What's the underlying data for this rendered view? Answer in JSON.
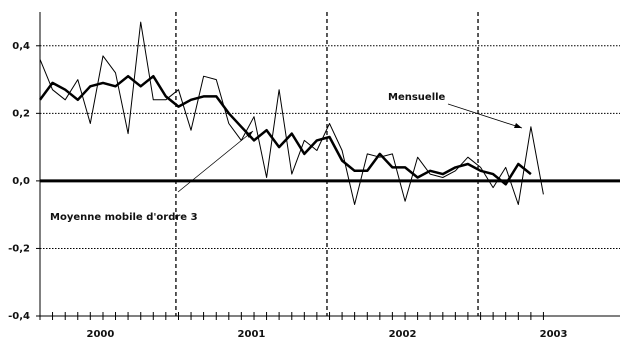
{
  "chart_data": {
    "type": "line",
    "x": [
      2000.1,
      2000.183,
      2000.267,
      2000.35,
      2000.433,
      2000.517,
      2000.6,
      2000.683,
      2000.767,
      2000.85,
      2000.933,
      2001.017,
      2001.1,
      2001.183,
      2001.267,
      2001.35,
      2001.433,
      2001.517,
      2001.6,
      2001.683,
      2001.767,
      2001.85,
      2001.933,
      2002.017,
      2002.1,
      2002.183,
      2002.267,
      2002.35,
      2002.433,
      2002.517,
      2002.6,
      2002.683,
      2002.767,
      2002.85,
      2002.933,
      2003.017,
      2003.1,
      2003.183,
      2003.267,
      2003.35,
      2003.433
    ],
    "series": [
      {
        "name": "Mensuelle",
        "color": "#000000",
        "width": 1,
        "values": [
          0.36,
          0.27,
          0.24,
          0.3,
          0.17,
          0.37,
          0.32,
          0.14,
          0.47,
          0.24,
          0.24,
          0.27,
          0.15,
          0.31,
          0.3,
          0.17,
          0.12,
          0.19,
          0.01,
          0.27,
          0.02,
          0.12,
          0.09,
          0.17,
          0.09,
          -0.07,
          0.08,
          0.07,
          0.08,
          -0.06,
          0.07,
          0.02,
          0.01,
          0.03,
          0.07,
          0.04,
          -0.02,
          0.04,
          -0.07,
          0.16,
          -0.04
        ]
      },
      {
        "name": "Moyenne mobile d'ordre 3",
        "color": "#000000",
        "width": 2.5,
        "values": [
          0.24,
          0.29,
          0.27,
          0.24,
          0.28,
          0.29,
          0.28,
          0.31,
          0.28,
          0.31,
          0.25,
          0.22,
          0.24,
          0.25,
          0.25,
          0.2,
          0.16,
          0.12,
          0.15,
          0.1,
          0.14,
          0.08,
          0.12,
          0.13,
          0.06,
          0.03,
          0.03,
          0.08,
          0.04,
          0.04,
          0.01,
          0.03,
          0.02,
          0.04,
          0.05,
          0.03,
          0.02,
          -0.01,
          0.05,
          0.02,
          null
        ]
      }
    ],
    "xlim": [
      2000.1,
      2003.94
    ],
    "xticks": [
      {
        "value": 2000.5,
        "label": "2000"
      },
      {
        "value": 2001.5,
        "label": "2001"
      },
      {
        "value": 2002.5,
        "label": "2002"
      },
      {
        "value": 2003.5,
        "label": "2003"
      }
    ],
    "year_lines": [
      2001,
      2002,
      2003
    ],
    "ylim": [
      -0.4,
      0.5
    ],
    "yticks": [
      {
        "value": -0.4,
        "label": "-0,4"
      },
      {
        "value": -0.2,
        "label": "-0,2"
      },
      {
        "value": 0,
        "label": "0,0"
      },
      {
        "value": 0.2,
        "label": "0,2"
      },
      {
        "value": 0.4,
        "label": "0,4"
      }
    ],
    "grid": true
  }
}
